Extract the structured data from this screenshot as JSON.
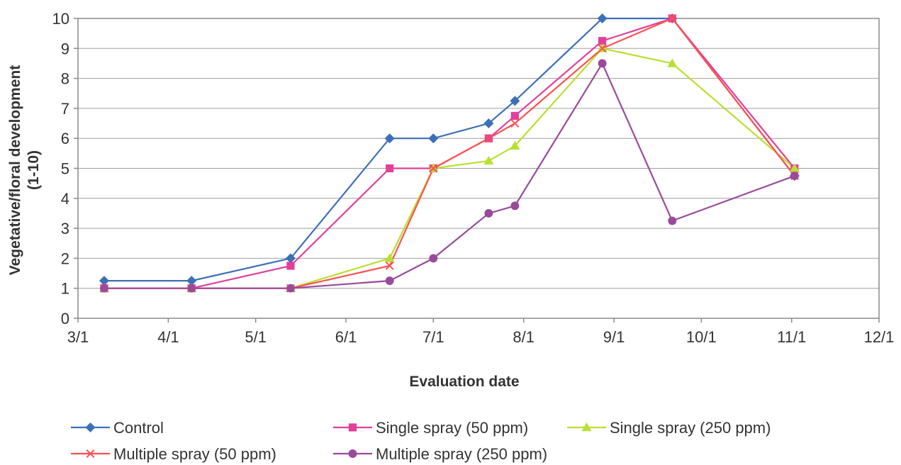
{
  "chart_data": {
    "type": "line",
    "title": "",
    "xlabel": "Evaluation date",
    "ylabel_lines": [
      "Vegetative/floral development",
      "(1-10)"
    ],
    "x_ticks": [
      "3/1",
      "4/1",
      "5/1",
      "6/1",
      "7/1",
      "8/1",
      "9/1",
      "10/1",
      "11/1",
      "12/1"
    ],
    "xlim": [
      "3/1",
      "12/1"
    ],
    "ylim": [
      0,
      10
    ],
    "y_ticks": [
      "0",
      "1",
      "2",
      "3",
      "4",
      "5",
      "6",
      "7",
      "8",
      "9",
      "10"
    ],
    "grid": "horizontal",
    "legend_position": "bottom",
    "x_dates": [
      "3/10",
      "4/9",
      "5/13",
      "6/16",
      "7/1",
      "7/20",
      "7/29",
      "8/28",
      "9/21",
      "11/2"
    ],
    "series": [
      {
        "name": "Control",
        "color": "#3d6fb8",
        "marker": "diamond",
        "values": [
          1.25,
          1.25,
          2,
          6,
          6,
          6.5,
          7.25,
          10,
          10,
          4.75
        ]
      },
      {
        "name": "Single spray (50 ppm)",
        "color": "#e0409a",
        "marker": "square",
        "values": [
          1,
          1,
          1.75,
          5,
          5,
          6,
          6.75,
          9.25,
          10,
          5
        ]
      },
      {
        "name": "Single spray (250 ppm)",
        "color": "#b8e030",
        "marker": "triangle",
        "values": [
          1,
          1,
          1,
          2,
          5,
          5.25,
          5.75,
          9,
          8.5,
          5
        ]
      },
      {
        "name": "Multiple spray (50 ppm)",
        "color": "#ff5050",
        "marker": "x",
        "values": [
          1,
          1,
          1,
          1.75,
          5,
          6,
          6.5,
          9,
          10,
          4.75
        ]
      },
      {
        "name": "Multiple spray (250 ppm)",
        "color": "#9a4a9a",
        "marker": "circle",
        "values": [
          1,
          1,
          1,
          1.25,
          2,
          3.5,
          3.75,
          8.5,
          3.25,
          4.75
        ]
      }
    ]
  }
}
